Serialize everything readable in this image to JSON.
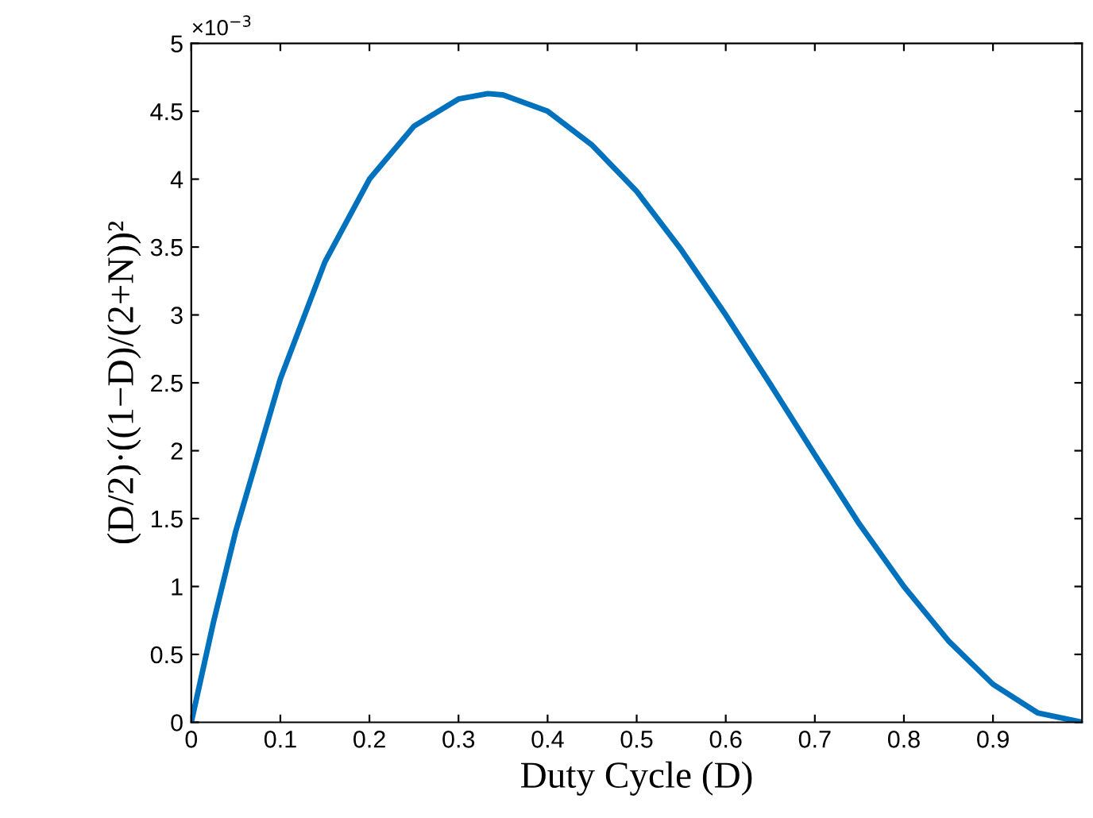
{
  "chart_data": {
    "type": "line",
    "xlabel": "Duty Cycle (D)",
    "ylabel": "(D/2)·((1−D)/(2+N))²",
    "annotations": [
      "×10$^{−3}$"
    ],
    "x": [
      0,
      0.025,
      0.05,
      0.1,
      0.15,
      0.2,
      0.25,
      0.3,
      0.333,
      0.35,
      0.4,
      0.45,
      0.5,
      0.55,
      0.6,
      0.65,
      0.7,
      0.75,
      0.8,
      0.85,
      0.9,
      0.95,
      1.0
    ],
    "series": [
      {
        "color": "#0072bd",
        "values": [
          0,
          0.74,
          1.41,
          2.53,
          3.39,
          4.0,
          4.39,
          4.59,
          4.63,
          4.62,
          4.5,
          4.25,
          3.91,
          3.48,
          3.0,
          2.49,
          1.97,
          1.46,
          1.0,
          0.6,
          0.28,
          0.07,
          0
        ]
      }
    ],
    "xlim": [
      0,
      1
    ],
    "ylim": [
      0,
      5
    ],
    "xticks": [
      0,
      0.1,
      0.2,
      0.3,
      0.4,
      0.5,
      0.6,
      0.7,
      0.8,
      0.9
    ],
    "yticks": [
      0,
      0.5,
      1,
      1.5,
      2,
      2.5,
      3,
      3.5,
      4,
      4.5,
      5
    ],
    "grid": false,
    "marker": "none",
    "line_style": "solid"
  }
}
